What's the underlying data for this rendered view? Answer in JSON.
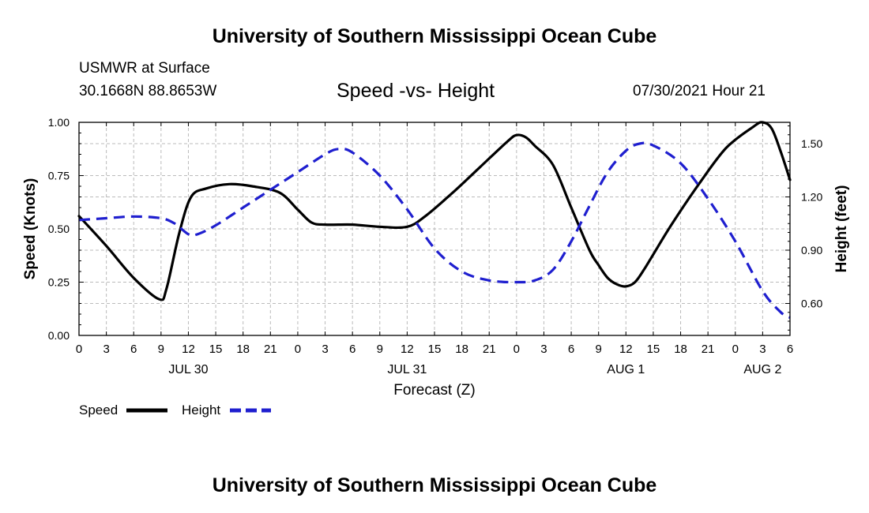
{
  "page": {
    "top_title": "University of Southern Mississippi Ocean Cube",
    "bottom_title": "University of Southern Mississippi Ocean Cube",
    "station": "USMWR at Surface",
    "coords": "30.1668N  88.8653W",
    "chart_title": "Speed -vs- Height",
    "timestamp": "07/30/2021 Hour 21"
  },
  "chart_data": {
    "type": "line",
    "title": "Speed -vs- Height",
    "xlabel": "Forecast (Z)",
    "ylabel": "Speed (Knots)",
    "y2label": "Height (feet)",
    "grid": true,
    "legend_position": "bottom-left",
    "x_range": [
      0,
      78
    ],
    "ylim": [
      0,
      1.0
    ],
    "y2lim": [
      0.42,
      1.62
    ],
    "yticks": [
      "0.00",
      "0.25",
      "0.50",
      "0.75",
      "1.00"
    ],
    "yticks_values": [
      0,
      0.25,
      0.5,
      0.75,
      1.0
    ],
    "y2ticks": [
      "0.60",
      "0.90",
      "1.20",
      "1.50"
    ],
    "y2ticks_values": [
      0.6,
      0.9,
      1.2,
      1.5
    ],
    "xticks": [
      "0",
      "3",
      "6",
      "9",
      "12",
      "15",
      "18",
      "21",
      "0",
      "3",
      "6",
      "9",
      "12",
      "15",
      "18",
      "21",
      "0",
      "3",
      "6",
      "9",
      "12",
      "15",
      "18",
      "21",
      "0",
      "3",
      "6"
    ],
    "date_labels": [
      {
        "label": "JUL 30",
        "x": 12
      },
      {
        "label": "JUL 31",
        "x": 36
      },
      {
        "label": "AUG 1",
        "x": 60
      },
      {
        "label": "AUG 2",
        "x": 75
      }
    ],
    "series": [
      {
        "name": "Speed",
        "axis": "left",
        "color": "#000000",
        "style": "solid",
        "x": [
          0,
          3,
          6,
          8.8,
          9.6,
          11,
          12.3,
          14,
          16.5,
          19,
          22,
          24,
          25.5,
          27,
          30,
          33,
          36,
          38,
          41,
          44,
          47,
          48,
          49,
          50,
          52,
          54,
          56,
          57,
          58,
          59,
          60,
          61,
          62,
          63,
          65,
          68,
          71,
          74,
          75,
          76,
          77,
          78
        ],
        "y": [
          0.56,
          0.42,
          0.27,
          0.17,
          0.22,
          0.48,
          0.65,
          0.69,
          0.71,
          0.7,
          0.67,
          0.59,
          0.53,
          0.52,
          0.52,
          0.51,
          0.51,
          0.56,
          0.67,
          0.79,
          0.91,
          0.94,
          0.93,
          0.89,
          0.8,
          0.6,
          0.4,
          0.33,
          0.27,
          0.24,
          0.23,
          0.25,
          0.31,
          0.38,
          0.52,
          0.71,
          0.88,
          0.98,
          1.0,
          0.97,
          0.86,
          0.73
        ]
      },
      {
        "name": "Height",
        "axis": "right",
        "color": "#1f1fcf",
        "style": "dashed",
        "x": [
          0,
          3,
          6,
          9,
          10.5,
          12,
          13,
          15,
          18,
          21,
          24,
          27,
          28.5,
          30,
          33,
          36,
          39,
          42,
          45,
          48,
          50,
          52,
          54,
          56,
          58,
          60,
          61.5,
          63,
          66,
          69,
          72,
          75,
          77,
          78
        ],
        "y": [
          1.07,
          1.08,
          1.09,
          1.08,
          1.05,
          0.99,
          0.99,
          1.04,
          1.14,
          1.24,
          1.34,
          1.44,
          1.47,
          1.45,
          1.32,
          1.13,
          0.91,
          0.78,
          0.73,
          0.72,
          0.73,
          0.79,
          0.95,
          1.15,
          1.34,
          1.46,
          1.5,
          1.49,
          1.39,
          1.19,
          0.95,
          0.67,
          0.55,
          0.52
        ]
      }
    ],
    "legend": [
      {
        "label": "Speed",
        "color": "#000000",
        "style": "solid"
      },
      {
        "label": "Height",
        "color": "#1f1fcf",
        "style": "dashed"
      }
    ]
  }
}
